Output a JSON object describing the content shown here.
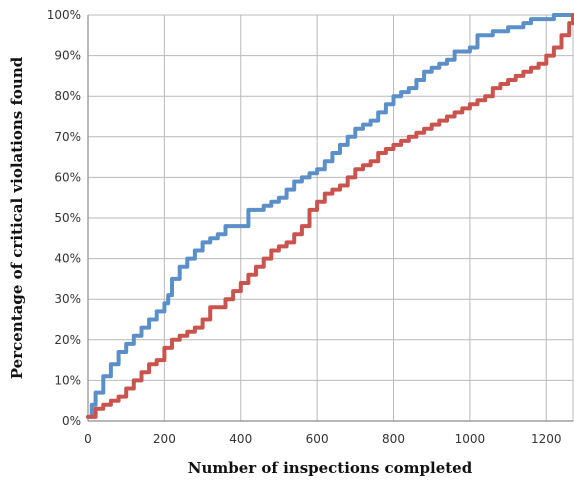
{
  "chart_data": {
    "type": "line",
    "title": "",
    "xlabel": "Number of inspections completed",
    "ylabel": "Percentage of critical violations found",
    "xlim": [
      0,
      1270
    ],
    "ylim": [
      0,
      100
    ],
    "x_ticks": [
      0,
      200,
      400,
      600,
      800,
      1000,
      1200
    ],
    "x_tick_labels": [
      "0",
      "200",
      "400",
      "600",
      "800",
      "1000",
      "1200"
    ],
    "y_ticks": [
      0,
      10,
      20,
      30,
      40,
      50,
      60,
      70,
      80,
      90,
      100
    ],
    "y_tick_labels": [
      "0%",
      "10%",
      "20%",
      "30%",
      "40%",
      "50%",
      "60%",
      "70%",
      "80%",
      "90%",
      "100%"
    ],
    "grid": true,
    "legend": "none",
    "series": [
      {
        "color": "#5b8fc8",
        "x": [
          0,
          10,
          20,
          40,
          60,
          80,
          100,
          120,
          140,
          160,
          180,
          200,
          210,
          220,
          240,
          260,
          280,
          300,
          320,
          340,
          360,
          380,
          400,
          420,
          440,
          460,
          480,
          500,
          520,
          540,
          560,
          580,
          600,
          620,
          640,
          660,
          680,
          700,
          720,
          740,
          760,
          780,
          800,
          820,
          840,
          860,
          880,
          900,
          920,
          940,
          960,
          980,
          1000,
          1020,
          1040,
          1060,
          1080,
          1100,
          1120,
          1140,
          1160,
          1180,
          1200,
          1220,
          1240,
          1270
        ],
        "y": [
          1,
          4,
          7,
          11,
          14,
          17,
          19,
          21,
          23,
          25,
          27,
          29,
          31,
          35,
          38,
          40,
          42,
          44,
          45,
          46,
          48,
          48,
          48,
          52,
          52,
          53,
          54,
          55,
          57,
          59,
          60,
          61,
          62,
          64,
          66,
          68,
          70,
          72,
          73,
          74,
          76,
          78,
          80,
          81,
          82,
          84,
          86,
          87,
          88,
          89,
          91,
          91,
          92,
          95,
          95,
          96,
          96,
          97,
          97,
          98,
          99,
          99,
          99,
          100,
          100,
          100
        ]
      },
      {
        "color": "#c9544e",
        "x": [
          0,
          20,
          40,
          60,
          80,
          100,
          120,
          140,
          160,
          180,
          200,
          220,
          240,
          260,
          280,
          300,
          320,
          340,
          360,
          380,
          400,
          420,
          440,
          460,
          480,
          500,
          520,
          540,
          560,
          580,
          600,
          620,
          640,
          660,
          680,
          700,
          720,
          740,
          760,
          780,
          800,
          820,
          840,
          860,
          880,
          900,
          920,
          940,
          960,
          980,
          1000,
          1020,
          1040,
          1060,
          1080,
          1100,
          1120,
          1140,
          1160,
          1180,
          1200,
          1220,
          1240,
          1260,
          1270
        ],
        "y": [
          1,
          3,
          4,
          5,
          6,
          8,
          10,
          12,
          14,
          15,
          18,
          20,
          21,
          22,
          23,
          25,
          28,
          28,
          30,
          32,
          34,
          36,
          38,
          40,
          42,
          43,
          44,
          46,
          48,
          52,
          54,
          56,
          57,
          58,
          60,
          62,
          63,
          64,
          66,
          67,
          68,
          69,
          70,
          71,
          72,
          73,
          74,
          75,
          76,
          77,
          78,
          79,
          80,
          82,
          83,
          84,
          85,
          86,
          87,
          88,
          90,
          92,
          95,
          98,
          100
        ]
      }
    ]
  }
}
